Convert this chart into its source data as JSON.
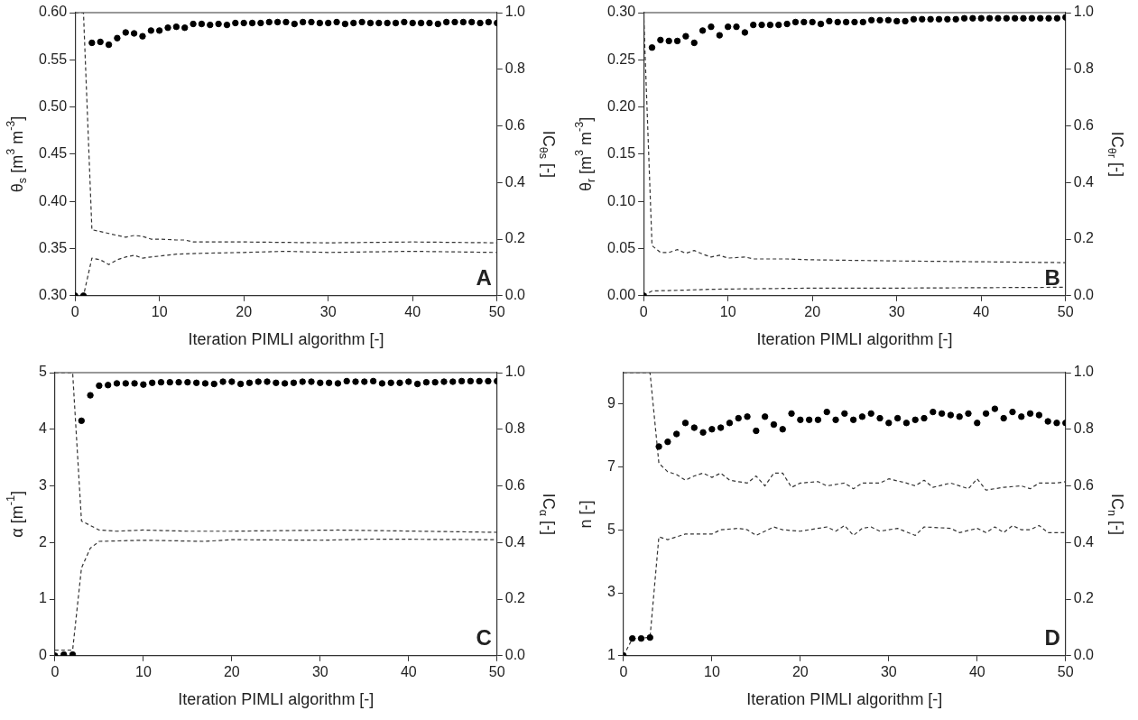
{
  "chart_data": [
    {
      "type": "scatter",
      "xlabel": "Iteration PIMLI algorithm [-]",
      "ylabel": "θ$_{s}$ [m$^{3}$ m$^{-3}$]",
      "y2label": "IC$_{θs}$ [-]",
      "annotations": [
        "A"
      ],
      "x": [
        0,
        1,
        2,
        3,
        4,
        5,
        6,
        7,
        8,
        9,
        10,
        11,
        12,
        13,
        14,
        15,
        16,
        17,
        18,
        19,
        20,
        21,
        22,
        23,
        24,
        25,
        26,
        27,
        28,
        29,
        30,
        31,
        32,
        33,
        34,
        35,
        36,
        37,
        38,
        39,
        40,
        41,
        42,
        43,
        44,
        45,
        46,
        47,
        48,
        49,
        50
      ],
      "xlim": [
        0,
        50
      ],
      "xticks": [
        0,
        10,
        20,
        30,
        40,
        50
      ],
      "ylim": [
        0.3,
        0.6
      ],
      "yticks": [
        {
          "value": 0.3,
          "label": "0.30"
        },
        {
          "value": 0.35,
          "label": "0.35"
        },
        {
          "value": 0.4,
          "label": "0.40"
        },
        {
          "value": 0.45,
          "label": "0.45"
        },
        {
          "value": 0.5,
          "label": "0.50"
        },
        {
          "value": 0.55,
          "label": "0.55"
        },
        {
          "value": 0.6,
          "label": "0.60"
        }
      ],
      "y2lim": [
        0,
        1
      ],
      "y2ticks": [
        {
          "value": 0,
          "label": "0.0"
        },
        {
          "value": 0.2,
          "label": "0.2"
        },
        {
          "value": 0.4,
          "label": "0.4"
        },
        {
          "value": 0.6,
          "label": "0.6"
        },
        {
          "value": 0.8,
          "label": "0.8"
        },
        {
          "value": 1,
          "label": "1.0"
        }
      ],
      "series": [
        {
          "type": "scatter",
          "marker": "circle",
          "color": "#000000",
          "values": [
            0.3,
            0.3,
            0.568,
            0.569,
            0.566,
            0.573,
            0.579,
            0.578,
            0.575,
            0.581,
            0.581,
            0.584,
            0.585,
            0.584,
            0.588,
            0.588,
            0.587,
            0.588,
            0.587,
            0.589,
            0.589,
            0.589,
            0.589,
            0.59,
            0.59,
            0.59,
            0.588,
            0.59,
            0.59,
            0.589,
            0.589,
            0.59,
            0.588,
            0.589,
            0.59,
            0.589,
            0.589,
            0.589,
            0.589,
            0.59,
            0.589,
            0.589,
            0.589,
            0.588,
            0.59,
            0.59,
            0.59,
            0.59,
            0.589,
            0.59,
            0.589
          ]
        },
        {
          "type": "line",
          "axis": "y2",
          "line_style": "dashed",
          "color": "#333333",
          "x": [
            0,
            1,
            2,
            3,
            4,
            5,
            6,
            7,
            8,
            9,
            10,
            12,
            13,
            14,
            20,
            30,
            40,
            50
          ],
          "values": [
            1.0,
            1.0,
            0.233,
            0.227,
            0.22,
            0.213,
            0.207,
            0.213,
            0.21,
            0.2,
            0.2,
            0.197,
            0.197,
            0.19,
            0.19,
            0.187,
            0.19,
            0.187
          ]
        },
        {
          "type": "line",
          "axis": "y2",
          "line_style": "dashed",
          "color": "#333333",
          "x": [
            0,
            1,
            2,
            3,
            4,
            5,
            6,
            7,
            8,
            9,
            10,
            12,
            15,
            20,
            25,
            30,
            40,
            50
          ],
          "values": [
            0,
            0,
            0.133,
            0.127,
            0.11,
            0.127,
            0.137,
            0.143,
            0.133,
            0.137,
            0.14,
            0.147,
            0.15,
            0.153,
            0.157,
            0.153,
            0.157,
            0.153
          ]
        }
      ]
    },
    {
      "type": "scatter",
      "xlabel": "Iteration PIMLI algorithm [-]",
      "ylabel": "θ$_{r}$ [m$^{3}$ m$^{-3}$]",
      "y2label": "IC$_{θr}$ [-]",
      "annotations": [
        "B"
      ],
      "x": [
        0,
        1,
        2,
        3,
        4,
        5,
        6,
        7,
        8,
        9,
        10,
        11,
        12,
        13,
        14,
        15,
        16,
        17,
        18,
        19,
        20,
        21,
        22,
        23,
        24,
        25,
        26,
        27,
        28,
        29,
        30,
        31,
        32,
        33,
        34,
        35,
        36,
        37,
        38,
        39,
        40,
        41,
        42,
        43,
        44,
        45,
        46,
        47,
        48,
        49,
        50
      ],
      "xlim": [
        0,
        50
      ],
      "xticks": [
        0,
        10,
        20,
        30,
        40,
        50
      ],
      "ylim": [
        0,
        0.3
      ],
      "yticks": [
        {
          "value": 0,
          "label": "0.00"
        },
        {
          "value": 0.05,
          "label": "0.05"
        },
        {
          "value": 0.1,
          "label": "0.10"
        },
        {
          "value": 0.15,
          "label": "0.15"
        },
        {
          "value": 0.2,
          "label": "0.20"
        },
        {
          "value": 0.25,
          "label": "0.25"
        },
        {
          "value": 0.3,
          "label": "0.30"
        }
      ],
      "y2lim": [
        0,
        1
      ],
      "y2ticks": [
        {
          "value": 0,
          "label": "0.0"
        },
        {
          "value": 0.2,
          "label": "0.2"
        },
        {
          "value": 0.4,
          "label": "0.4"
        },
        {
          "value": 0.6,
          "label": "0.6"
        },
        {
          "value": 0.8,
          "label": "0.8"
        },
        {
          "value": 1,
          "label": "1.0"
        }
      ],
      "series": [
        {
          "type": "scatter",
          "marker": "circle",
          "color": "#000000",
          "values": [
            0.0,
            0.263,
            0.271,
            0.27,
            0.27,
            0.275,
            0.268,
            0.281,
            0.285,
            0.276,
            0.285,
            0.285,
            0.279,
            0.287,
            0.287,
            0.287,
            0.287,
            0.288,
            0.29,
            0.29,
            0.29,
            0.288,
            0.291,
            0.29,
            0.29,
            0.29,
            0.29,
            0.292,
            0.292,
            0.292,
            0.291,
            0.291,
            0.293,
            0.293,
            0.293,
            0.293,
            0.293,
            0.293,
            0.294,
            0.294,
            0.294,
            0.294,
            0.294,
            0.294,
            0.294,
            0.294,
            0.294,
            0.294,
            0.294,
            0.294,
            0.295
          ]
        },
        {
          "type": "line",
          "axis": "y2",
          "line_style": "dashed",
          "color": "#333333",
          "x": [
            0,
            1,
            2,
            3,
            4,
            5,
            6,
            7,
            8,
            9,
            10,
            12,
            13,
            17,
            20,
            30,
            40,
            50
          ],
          "values": [
            1.0,
            0.177,
            0.153,
            0.153,
            0.163,
            0.15,
            0.16,
            0.147,
            0.137,
            0.143,
            0.133,
            0.137,
            0.13,
            0.13,
            0.127,
            0.123,
            0.12,
            0.117
          ]
        },
        {
          "type": "line",
          "axis": "y2",
          "line_style": "dashed",
          "color": "#333333",
          "x": [
            0,
            1,
            5,
            8,
            20,
            30,
            50
          ],
          "values": [
            0,
            0.017,
            0.02,
            0.023,
            0.027,
            0.027,
            0.03
          ]
        }
      ]
    },
    {
      "type": "scatter",
      "xlabel": "Iteration PIMLI algorithm [-]",
      "ylabel": "α [m$^{-1}$]",
      "y2label": "IC$_{α}$ [-]",
      "annotations": [
        "C"
      ],
      "x": [
        0,
        1,
        2,
        3,
        4,
        5,
        6,
        7,
        8,
        9,
        10,
        11,
        12,
        13,
        14,
        15,
        16,
        17,
        18,
        19,
        20,
        21,
        22,
        23,
        24,
        25,
        26,
        27,
        28,
        29,
        30,
        31,
        32,
        33,
        34,
        35,
        36,
        37,
        38,
        39,
        40,
        41,
        42,
        43,
        44,
        45,
        46,
        47,
        48,
        49,
        50
      ],
      "xlim": [
        0,
        50
      ],
      "xticks": [
        0,
        10,
        20,
        30,
        40,
        50
      ],
      "ylim": [
        0,
        5
      ],
      "yticks": [
        0,
        1,
        2,
        3,
        4,
        5
      ],
      "y2lim": [
        0,
        1
      ],
      "y2ticks": [
        {
          "value": 0,
          "label": "0.0"
        },
        {
          "value": 0.2,
          "label": "0.2"
        },
        {
          "value": 0.4,
          "label": "0.4"
        },
        {
          "value": 0.6,
          "label": "0.6"
        },
        {
          "value": 0.8,
          "label": "0.8"
        },
        {
          "value": 1,
          "label": "1.0"
        }
      ],
      "series": [
        {
          "type": "scatter",
          "marker": "circle",
          "color": "#000000",
          "values": [
            0,
            0.02,
            0.02,
            4.15,
            4.6,
            4.77,
            4.78,
            4.81,
            4.81,
            4.81,
            4.79,
            4.82,
            4.83,
            4.83,
            4.83,
            4.83,
            4.82,
            4.81,
            4.8,
            4.84,
            4.84,
            4.8,
            4.82,
            4.84,
            4.84,
            4.82,
            4.81,
            4.82,
            4.84,
            4.84,
            4.82,
            4.82,
            4.81,
            4.85,
            4.84,
            4.84,
            4.85,
            4.81,
            4.82,
            4.82,
            4.84,
            4.8,
            4.83,
            4.83,
            4.84,
            4.84,
            4.85,
            4.85,
            4.85,
            4.85,
            4.85
          ]
        },
        {
          "type": "line",
          "axis": "y2",
          "line_style": "dashed",
          "color": "#333333",
          "x": [
            0,
            2,
            3,
            4,
            5,
            7,
            10,
            15,
            20,
            32,
            50
          ],
          "values": [
            1.0,
            1.0,
            0.476,
            0.46,
            0.444,
            0.44,
            0.444,
            0.44,
            0.44,
            0.444,
            0.436
          ]
        },
        {
          "type": "line",
          "axis": "y2",
          "line_style": "dashed",
          "color": "#333333",
          "x": [
            0,
            2,
            3,
            4,
            5,
            10,
            17,
            20,
            30,
            36,
            50
          ],
          "values": [
            0.02,
            0.02,
            0.31,
            0.38,
            0.404,
            0.408,
            0.404,
            0.41,
            0.408,
            0.412,
            0.41
          ]
        }
      ]
    },
    {
      "type": "scatter",
      "xlabel": "Iteration PIMLI algorithm [-]",
      "ylabel": "n [-]",
      "y2label": "IC$_{n}$ [-]",
      "annotations": [
        "D"
      ],
      "x": [
        0,
        1,
        2,
        3,
        4,
        5,
        6,
        7,
        8,
        9,
        10,
        11,
        12,
        13,
        14,
        15,
        16,
        17,
        18,
        19,
        20,
        21,
        22,
        23,
        24,
        25,
        26,
        27,
        28,
        29,
        30,
        31,
        32,
        33,
        34,
        35,
        36,
        37,
        38,
        39,
        40,
        41,
        42,
        43,
        44,
        45,
        46,
        47,
        48,
        49,
        50
      ],
      "xlim": [
        0,
        50
      ],
      "xticks": [
        0,
        10,
        20,
        30,
        40,
        50
      ],
      "ylim": [
        1,
        10
      ],
      "yticks": [
        1,
        3,
        5,
        7,
        9
      ],
      "y2lim": [
        0,
        1
      ],
      "y2ticks": [
        {
          "value": 0,
          "label": "0.0"
        },
        {
          "value": 0.2,
          "label": "0.2"
        },
        {
          "value": 0.4,
          "label": "0.4"
        },
        {
          "value": 0.6,
          "label": "0.6"
        },
        {
          "value": 0.8,
          "label": "0.8"
        },
        {
          "value": 1,
          "label": "1.0"
        }
      ],
      "series": [
        {
          "type": "scatter",
          "marker": "circle",
          "color": "#000000",
          "values": [
            1.0,
            1.55,
            1.55,
            1.58,
            7.65,
            7.8,
            8.05,
            8.4,
            8.25,
            8.1,
            8.2,
            8.25,
            8.4,
            8.55,
            8.6,
            8.15,
            8.6,
            8.35,
            8.2,
            8.7,
            8.5,
            8.5,
            8.5,
            8.75,
            8.5,
            8.7,
            8.5,
            8.6,
            8.7,
            8.55,
            8.4,
            8.55,
            8.4,
            8.5,
            8.55,
            8.75,
            8.7,
            8.65,
            8.6,
            8.7,
            8.4,
            8.7,
            8.85,
            8.55,
            8.75,
            8.6,
            8.7,
            8.65,
            8.45,
            8.4,
            8.4
          ]
        },
        {
          "type": "line",
          "axis": "y2",
          "line_style": "dashed",
          "color": "#333333",
          "x": [
            0,
            3,
            4,
            5,
            6,
            7,
            8,
            9,
            10,
            11,
            12,
            14,
            15,
            16,
            17,
            18,
            19,
            20,
            22,
            23,
            25,
            26,
            27,
            29,
            30,
            32,
            33,
            34,
            35,
            37,
            39,
            40,
            41,
            43,
            45,
            46,
            47,
            49,
            50
          ],
          "values": [
            1.0,
            1.0,
            0.68,
            0.65,
            0.64,
            0.62,
            0.635,
            0.645,
            0.63,
            0.645,
            0.62,
            0.61,
            0.635,
            0.6,
            0.645,
            0.645,
            0.595,
            0.61,
            0.615,
            0.6,
            0.61,
            0.59,
            0.61,
            0.61,
            0.625,
            0.61,
            0.6,
            0.62,
            0.595,
            0.61,
            0.59,
            0.625,
            0.585,
            0.595,
            0.6,
            0.59,
            0.61,
            0.61,
            0.615
          ]
        },
        {
          "type": "line",
          "axis": "y2",
          "line_style": "dashed",
          "color": "#333333",
          "x": [
            0,
            1,
            3,
            4,
            5,
            7,
            10,
            11,
            13,
            14,
            15,
            16,
            17,
            18,
            20,
            23,
            24,
            25,
            26,
            27,
            28,
            29,
            31,
            33,
            34,
            37,
            38,
            40,
            41,
            42,
            43,
            44,
            45,
            46,
            47,
            48,
            50
          ],
          "values": [
            0,
            0.06,
            0.065,
            0.42,
            0.41,
            0.43,
            0.43,
            0.445,
            0.45,
            0.445,
            0.425,
            0.44,
            0.455,
            0.445,
            0.44,
            0.455,
            0.44,
            0.46,
            0.425,
            0.45,
            0.455,
            0.44,
            0.45,
            0.425,
            0.455,
            0.45,
            0.435,
            0.45,
            0.435,
            0.455,
            0.435,
            0.46,
            0.445,
            0.445,
            0.46,
            0.435,
            0.435
          ]
        }
      ]
    }
  ]
}
